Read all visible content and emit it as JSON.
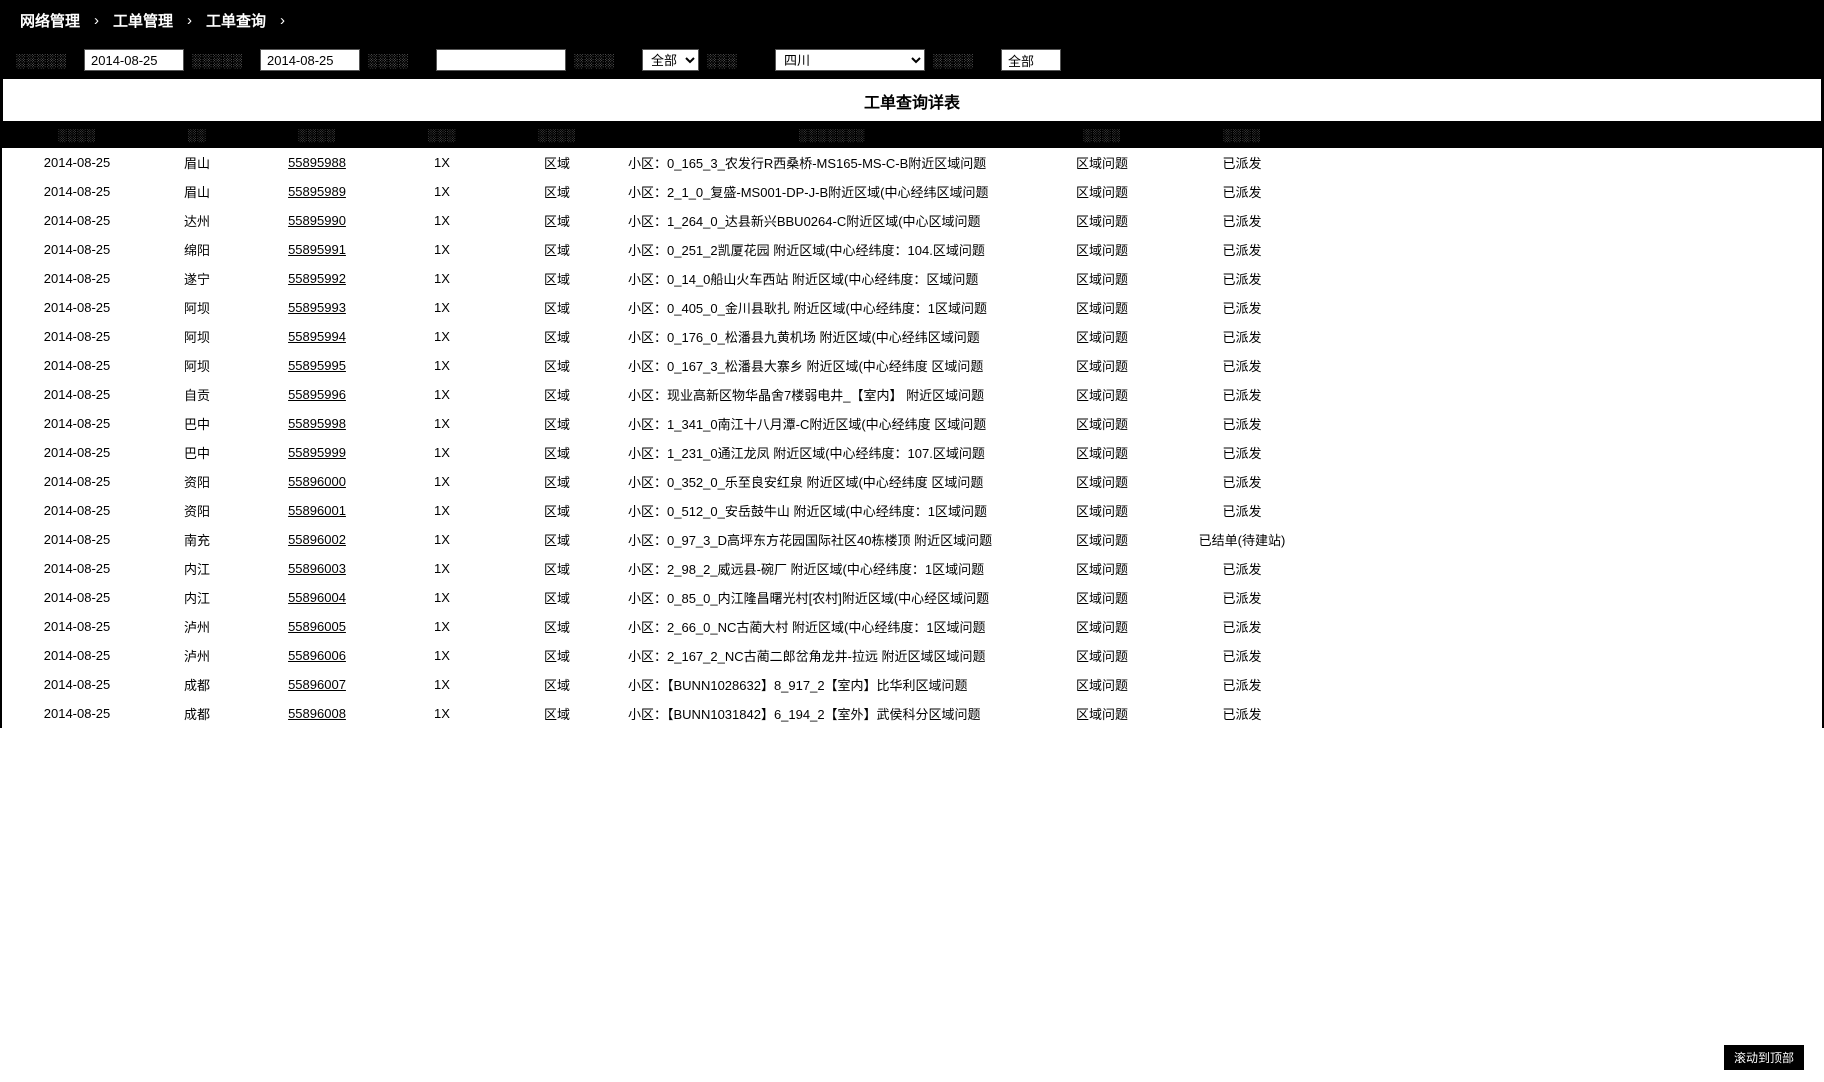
{
  "breadcrumb": {
    "item1": "网络管理",
    "item2": "工单管理",
    "item3": "工单查询",
    "sep": "›"
  },
  "filters": {
    "label_start": "开始日期:",
    "start_value": "2014-08-25",
    "label_end": "结束日期:",
    "end_value": "2014-08-25",
    "label_name": "名称:",
    "name_value": "",
    "label_status": "状态:",
    "status_value": "全部",
    "label_province": "省份:",
    "province_value": "四川",
    "label_type": "类型:",
    "type_value": "全部"
  },
  "table": {
    "title": "工单查询详表",
    "columns": [
      "",
      "",
      "",
      "",
      "",
      "",
      "",
      "",
      ""
    ],
    "col_keys": [
      "date",
      "city",
      "order_id",
      "net",
      "type",
      "desc",
      "issue_type",
      "status"
    ],
    "rows": [
      {
        "date": "2014-08-25",
        "city": "眉山",
        "order_id": "55895988",
        "net": "1X",
        "type": "区域",
        "desc": "小区：0_165_3_农发行R西桑桥-MS165-MS-C-B附近区域问题",
        "issue_type": "区域问题",
        "status": "已派发"
      },
      {
        "date": "2014-08-25",
        "city": "眉山",
        "order_id": "55895989",
        "net": "1X",
        "type": "区域",
        "desc": "小区：2_1_0_复盛-MS001-DP-J-B附近区域(中心经纬区域问题",
        "issue_type": "区域问题",
        "status": "已派发"
      },
      {
        "date": "2014-08-25",
        "city": "达州",
        "order_id": "55895990",
        "net": "1X",
        "type": "区域",
        "desc": "小区：1_264_0_达县新兴BBU0264-C附近区域(中心区域问题",
        "issue_type": "区域问题",
        "status": "已派发"
      },
      {
        "date": "2014-08-25",
        "city": "绵阳",
        "order_id": "55895991",
        "net": "1X",
        "type": "区域",
        "desc": "小区：0_251_2凯厦花园 附近区域(中心经纬度：104.区域问题",
        "issue_type": "区域问题",
        "status": "已派发"
      },
      {
        "date": "2014-08-25",
        "city": "遂宁",
        "order_id": "55895992",
        "net": "1X",
        "type": "区域",
        "desc": "小区：0_14_0船山火车西站 附近区域(中心经纬度：区域问题",
        "issue_type": "区域问题",
        "status": "已派发"
      },
      {
        "date": "2014-08-25",
        "city": "阿坝",
        "order_id": "55895993",
        "net": "1X",
        "type": "区域",
        "desc": "小区：0_405_0_金川县耿扎 附近区域(中心经纬度：1区域问题",
        "issue_type": "区域问题",
        "status": "已派发"
      },
      {
        "date": "2014-08-25",
        "city": "阿坝",
        "order_id": "55895994",
        "net": "1X",
        "type": "区域",
        "desc": "小区：0_176_0_松潘县九黄机场 附近区域(中心经纬区域问题",
        "issue_type": "区域问题",
        "status": "已派发"
      },
      {
        "date": "2014-08-25",
        "city": "阿坝",
        "order_id": "55895995",
        "net": "1X",
        "type": "区域",
        "desc": "小区：0_167_3_松潘县大寨乡 附近区域(中心经纬度 区域问题",
        "issue_type": "区域问题",
        "status": "已派发"
      },
      {
        "date": "2014-08-25",
        "city": "自贡",
        "order_id": "55895996",
        "net": "1X",
        "type": "区域",
        "desc": "小区：现业高新区物华晶舍7楼弱电井_【室内】 附近区域问题",
        "issue_type": "区域问题",
        "status": "已派发"
      },
      {
        "date": "2014-08-25",
        "city": "巴中",
        "order_id": "55895998",
        "net": "1X",
        "type": "区域",
        "desc": "小区：1_341_0南江十八月潭-C附近区域(中心经纬度 区域问题",
        "issue_type": "区域问题",
        "status": "已派发"
      },
      {
        "date": "2014-08-25",
        "city": "巴中",
        "order_id": "55895999",
        "net": "1X",
        "type": "区域",
        "desc": "小区：1_231_0通江龙凤 附近区域(中心经纬度：107.区域问题",
        "issue_type": "区域问题",
        "status": "已派发"
      },
      {
        "date": "2014-08-25",
        "city": "资阳",
        "order_id": "55896000",
        "net": "1X",
        "type": "区域",
        "desc": "小区：0_352_0_乐至良安红泉 附近区域(中心经纬度 区域问题",
        "issue_type": "区域问题",
        "status": "已派发"
      },
      {
        "date": "2014-08-25",
        "city": "资阳",
        "order_id": "55896001",
        "net": "1X",
        "type": "区域",
        "desc": "小区：0_512_0_安岳鼓牛山 附近区域(中心经纬度：1区域问题",
        "issue_type": "区域问题",
        "status": "已派发"
      },
      {
        "date": "2014-08-25",
        "city": "南充",
        "order_id": "55896002",
        "net": "1X",
        "type": "区域",
        "desc": "小区：0_97_3_D高坪东方花园国际社区40栋楼顶 附近区域问题",
        "issue_type": "区域问题",
        "status": "已结单(待建站)"
      },
      {
        "date": "2014-08-25",
        "city": "内江",
        "order_id": "55896003",
        "net": "1X",
        "type": "区域",
        "desc": "小区：2_98_2_威远县-碗厂 附近区域(中心经纬度：1区域问题",
        "issue_type": "区域问题",
        "status": "已派发"
      },
      {
        "date": "2014-08-25",
        "city": "内江",
        "order_id": "55896004",
        "net": "1X",
        "type": "区域",
        "desc": "小区：0_85_0_内江隆昌曙光村[农村]附近区域(中心经区域问题",
        "issue_type": "区域问题",
        "status": "已派发"
      },
      {
        "date": "2014-08-25",
        "city": "泸州",
        "order_id": "55896005",
        "net": "1X",
        "type": "区域",
        "desc": "小区：2_66_0_NC古蔺大村 附近区域(中心经纬度：1区域问题",
        "issue_type": "区域问题",
        "status": "已派发"
      },
      {
        "date": "2014-08-25",
        "city": "泸州",
        "order_id": "55896006",
        "net": "1X",
        "type": "区域",
        "desc": "小区：2_167_2_NC古蔺二郎岔角龙井-拉远 附近区域区域问题",
        "issue_type": "区域问题",
        "status": "已派发"
      },
      {
        "date": "2014-08-25",
        "city": "成都",
        "order_id": "55896007",
        "net": "1X",
        "type": "区域",
        "desc": "小区：【BUNN1028632】8_917_2【室内】比华利区域问题",
        "issue_type": "区域问题",
        "status": "已派发"
      },
      {
        "date": "2014-08-25",
        "city": "成都",
        "order_id": "55896008",
        "net": "1X",
        "type": "区域",
        "desc": "小区：【BUNN1031842】6_194_2【室外】武侯科分区域问题",
        "issue_type": "区域问题",
        "status": "已派发"
      }
    ]
  },
  "scroll_top": "滚动到顶部",
  "colors": {
    "header_bg": "#000000",
    "header_fg": "#ffffff",
    "th_fg": "#888888",
    "link": "#000000"
  }
}
